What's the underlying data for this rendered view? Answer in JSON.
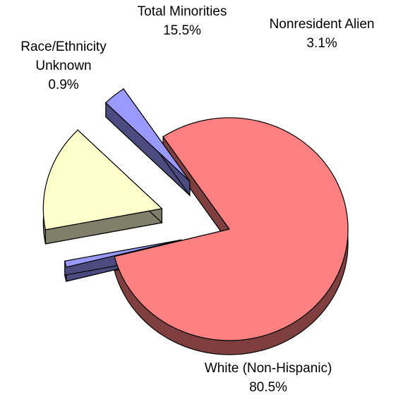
{
  "chart_data": {
    "type": "pie",
    "style": "3d-exploded",
    "categories": [
      "White (Non-Hispanic)",
      "Race/Ethnicity Unknown",
      "Total Minorities",
      "Nonresident Alien"
    ],
    "values": [
      80.5,
      0.9,
      15.5,
      3.1
    ],
    "value_labels": [
      "80.5%",
      "0.9%",
      "15.5%",
      "3.1%"
    ],
    "label_lines": [
      [
        "White (Non-Hispanic)",
        "80.5%"
      ],
      [
        "Race/Ethnicity",
        "Unknown",
        "0.9%"
      ],
      [
        "Total Minorities",
        "15.5%"
      ],
      [
        "Nonresident Alien",
        "3.1%"
      ]
    ],
    "colors": [
      "#FF8080",
      "#9999FF",
      "#FFFFCC",
      "#9999FF"
    ],
    "side_colors": [
      "#7F3F3F",
      "#4B4B80",
      "#80806A",
      "#4B4B80"
    ],
    "legend": "none"
  }
}
